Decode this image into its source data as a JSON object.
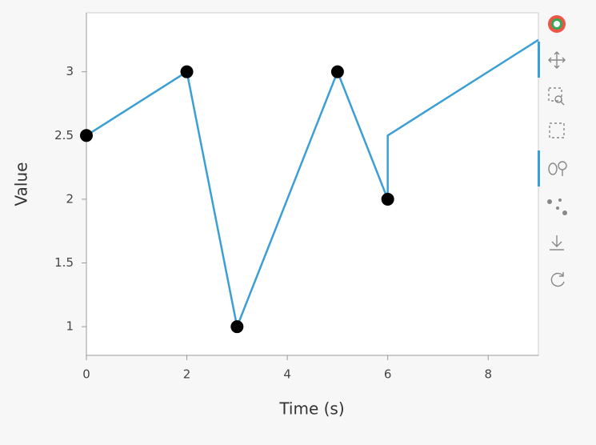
{
  "chart_data": {
    "type": "line",
    "xlabel": "Time (s)",
    "ylabel": "Value",
    "series": [
      {
        "kind": "line",
        "color": "#3b9fd6",
        "x": [
          0,
          2,
          3,
          5,
          6,
          6,
          9
        ],
        "values": [
          2.5,
          3,
          1,
          3,
          2,
          2.5,
          3.25
        ]
      },
      {
        "kind": "scatter",
        "color": "#000000",
        "x": [
          0,
          2,
          3,
          5,
          6
        ],
        "values": [
          2.5,
          3,
          1,
          3,
          2
        ]
      }
    ],
    "xlim": [
      0,
      9
    ],
    "ylim": [
      0.775,
      3.4625
    ],
    "xticks": [
      0,
      2,
      4,
      6,
      8
    ],
    "yticks": [
      1,
      1.5,
      2,
      2.5,
      3
    ]
  }
}
